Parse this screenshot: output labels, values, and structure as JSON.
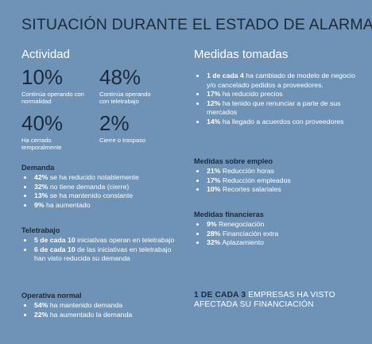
{
  "title": "SITUACIÓN DURANTE EL ESTADO DE ALARMA",
  "actividad": {
    "heading": "Actividad",
    "stats": [
      {
        "value": "10%",
        "label": "Continúa operando con normalidad"
      },
      {
        "value": "48%",
        "label": "Continúa operando con teletrabajo"
      },
      {
        "value": "40%",
        "label": "Ha cerrado temporalmente"
      },
      {
        "value": "2%",
        "label": "Cierre o traspaso"
      }
    ]
  },
  "demanda": {
    "heading": "Demanda",
    "items": [
      {
        "value": "42%",
        "text": "se ha reducido notablemente"
      },
      {
        "value": "32%",
        "text": "no tiene demanda (cierre)"
      },
      {
        "value": "13%",
        "text": "se ha mantenido constante"
      },
      {
        "value": "9%",
        "text": "ha aumentado"
      }
    ]
  },
  "teletrabajo": {
    "heading": "Teletrabajo",
    "items": [
      {
        "value": "5 de cada 10",
        "text": "iniciativas operan en teletrabajo"
      },
      {
        "value": "6 de cada 10",
        "text": "de las iniciativas en teletrabajo han visto  reducida su demanda"
      }
    ]
  },
  "operativa": {
    "heading": "Operativa normal",
    "items": [
      {
        "value": "54%",
        "text": "ha  mantenido demanda"
      },
      {
        "value": "22%",
        "text": "ha aumentado la demanda"
      }
    ]
  },
  "medidas": {
    "heading": "Medidas tomadas",
    "items": [
      {
        "value": "1 de cada 4",
        "text": "ha cambiado de modelo de negocio y/o cancelado pedidos a proveedores."
      },
      {
        "value": "17%",
        "text": "ha reducido precios"
      },
      {
        "value": "12%",
        "text": "ha tenido que renunciar a parte de sus mercados"
      },
      {
        "value": "14%",
        "text": "ha llegado a acuerdos con proveedores"
      }
    ]
  },
  "empleo": {
    "heading": "Medidas sobre empleo",
    "items": [
      {
        "value": "21%",
        "text": "Reducción horas"
      },
      {
        "value": "17%",
        "text": "Reducción empleados"
      },
      {
        "value": "10%",
        "text": "Recortes salariales"
      }
    ]
  },
  "financieras": {
    "heading": "Medidas financieras",
    "items": [
      {
        "value": "9%",
        "text": "Renegociación"
      },
      {
        "value": "28%",
        "text": "Financiación extra"
      },
      {
        "value": "32%",
        "text": "Aplazamiento"
      }
    ]
  },
  "closing": {
    "emphasis": "1 DE CADA 3",
    "line1": "EMPRESAS HA VISTO",
    "line2": "AFECTADA SU FINANCIACIÓN"
  }
}
